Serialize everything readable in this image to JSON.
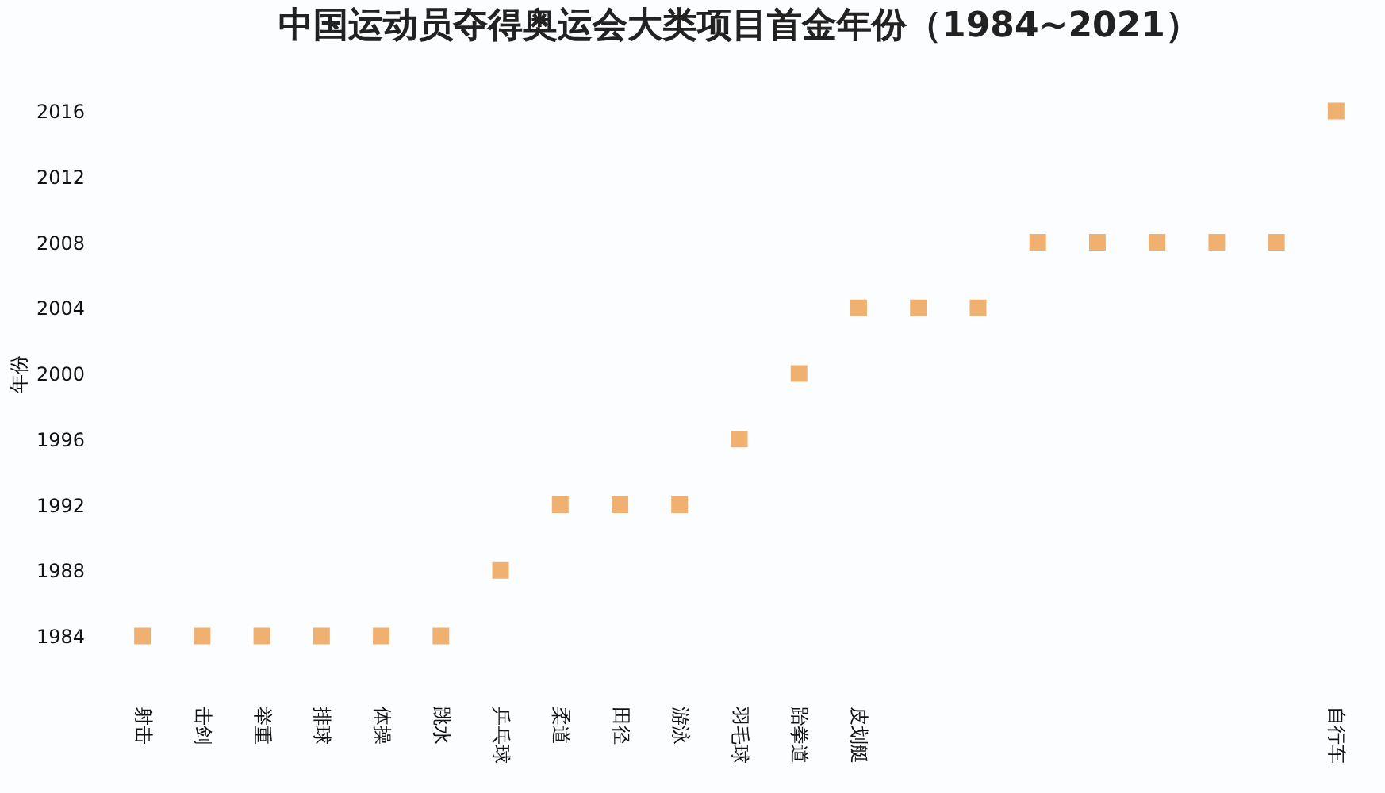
{
  "chart_data": {
    "type": "scatter",
    "title": "中国运动员夺得奥运会大类项目首金年份（1984~2021）",
    "ylabel": "年份",
    "categories": [
      "射击",
      "击剑",
      "举重",
      "排球",
      "体操",
      "跳水",
      "乒乓球",
      "柔道",
      "田径",
      "游泳",
      "羽毛球",
      "跆拳道",
      "皮划艇",
      null,
      null,
      null,
      null,
      null,
      null,
      null,
      "自行车"
    ],
    "series": [
      {
        "color": "#f0b070",
        "values": [
          1984,
          1984,
          1984,
          1984,
          1984,
          1984,
          1988,
          1992,
          1992,
          1992,
          1996,
          2000,
          2004,
          2004,
          2004,
          2008,
          2008,
          2008,
          2008,
          2008,
          2016
        ]
      }
    ],
    "ylim": [
      1984,
      2016
    ],
    "yticks": [
      1984,
      1988,
      1992,
      1996,
      2000,
      2004,
      2008,
      2012,
      2016
    ],
    "marker": "square",
    "grid": false
  }
}
